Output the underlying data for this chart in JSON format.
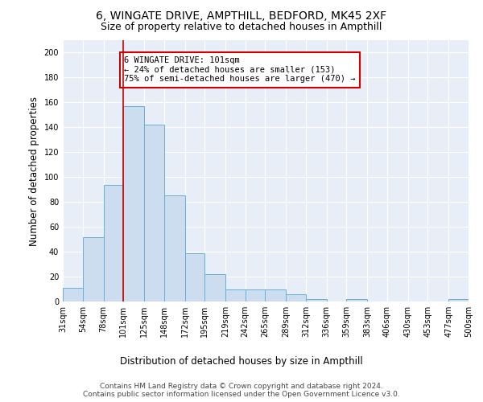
{
  "title": "6, WINGATE DRIVE, AMPTHILL, BEDFORD, MK45 2XF",
  "subtitle": "Size of property relative to detached houses in Ampthill",
  "xlabel": "Distribution of detached houses by size in Ampthill",
  "ylabel": "Number of detached properties",
  "bar_color": "#ccddf0",
  "bar_edge_color": "#6aaed6",
  "fig_background_color": "#ffffff",
  "axes_background_color": "#e8eef8",
  "grid_color": "#ffffff",
  "red_line_x": 101,
  "annotation_text": "6 WINGATE DRIVE: 101sqm\n← 24% of detached houses are smaller (153)\n75% of semi-detached houses are larger (470) →",
  "annotation_box_color": "#ffffff",
  "annotation_box_edge": "#cc0000",
  "bin_edges": [
    31,
    54,
    78,
    101,
    125,
    148,
    172,
    195,
    219,
    242,
    265,
    289,
    312,
    336,
    359,
    383,
    406,
    430,
    453,
    477,
    500
  ],
  "bin_counts": [
    11,
    52,
    94,
    157,
    142,
    85,
    39,
    22,
    10,
    10,
    10,
    6,
    2,
    0,
    2,
    0,
    0,
    0,
    0,
    2
  ],
  "footer_text": "Contains HM Land Registry data © Crown copyright and database right 2024.\nContains public sector information licensed under the Open Government Licence v3.0.",
  "title_fontsize": 10,
  "subtitle_fontsize": 9,
  "xlabel_fontsize": 8.5,
  "ylabel_fontsize": 8.5,
  "tick_fontsize": 7,
  "footer_fontsize": 6.5,
  "annotation_fontsize": 7.5,
  "ylim": [
    0,
    210
  ]
}
